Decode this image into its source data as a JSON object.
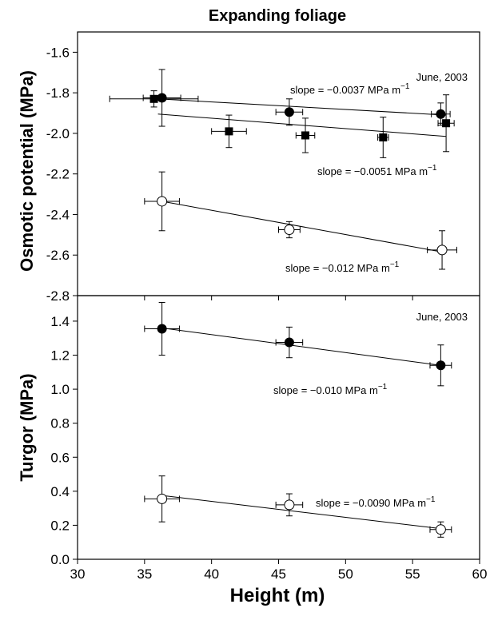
{
  "chart_data": [
    {
      "panel": "top",
      "type": "scatter",
      "title": "Expanding foliage",
      "ylabel": "Osmotic potential (MPa)",
      "xlabel": "",
      "xlim": [
        30,
        60
      ],
      "ylim": [
        -2.8,
        -1.5
      ],
      "yticks": [
        "-1.6",
        "-1.8",
        "-2.0",
        "-2.2",
        "-2.4",
        "-2.6",
        "-2.8"
      ],
      "annotation": "June, 2003",
      "series": [
        {
          "marker": "filled-circle",
          "points": [
            {
              "x": 36.3,
              "y": -1.825,
              "xerr": 1.4,
              "yerr": 0.14
            },
            {
              "x": 45.8,
              "y": -1.895,
              "xerr": 1.0,
              "yerr": 0.065
            },
            {
              "x": 57.1,
              "y": -1.905,
              "xerr": 0.7,
              "yerr": 0.055
            }
          ],
          "fit": [
            [
              36.0,
              -1.83
            ],
            [
              57.5,
              -1.91
            ]
          ],
          "slope_label": "slope = −0.0037 MPa m",
          "slope_sup": "−1"
        },
        {
          "marker": "filled-square",
          "points": [
            {
              "x": 35.7,
              "y": -1.83,
              "xerr": 3.3,
              "yerr": 0.04
            },
            {
              "x": 41.3,
              "y": -1.99,
              "xerr": 1.3,
              "yerr": 0.08
            },
            {
              "x": 47.0,
              "y": -2.01,
              "xerr": 0.7,
              "yerr": 0.085
            },
            {
              "x": 52.8,
              "y": -2.02,
              "xerr": 0.4,
              "yerr": 0.1
            },
            {
              "x": 57.5,
              "y": -1.95,
              "xerr": 0.6,
              "yerr": 0.14
            }
          ],
          "fit": [
            [
              36.0,
              -1.905
            ],
            [
              57.5,
              -2.015
            ]
          ],
          "slope_label": "slope = −0.0051 MPa m",
          "slope_sup": "−1"
        },
        {
          "marker": "open-circle",
          "points": [
            {
              "x": 36.3,
              "y": -2.335,
              "xerr": 1.3,
              "yerr": 0.145
            },
            {
              "x": 45.8,
              "y": -2.475,
              "xerr": 0.8,
              "yerr": 0.04
            },
            {
              "x": 57.2,
              "y": -2.575,
              "xerr": 1.1,
              "yerr": 0.095
            }
          ],
          "fit": [
            [
              36.3,
              -2.335
            ],
            [
              57.2,
              -2.585
            ]
          ],
          "slope_label": "slope = −0.012 MPa m",
          "slope_sup": "−1"
        }
      ]
    },
    {
      "panel": "bottom",
      "type": "scatter",
      "ylabel": "Turgor (MPa)",
      "xlabel": "Height (m)",
      "xlim": [
        30,
        60
      ],
      "ylim": [
        0,
        1.55
      ],
      "yticks": [
        "0.0",
        "0.2",
        "0.4",
        "0.6",
        "0.8",
        "1.0",
        "1.2",
        "1.4"
      ],
      "xticks": [
        "30",
        "35",
        "40",
        "45",
        "50",
        "55",
        "60"
      ],
      "annotation": "June, 2003",
      "series": [
        {
          "marker": "filled-circle",
          "points": [
            {
              "x": 36.3,
              "y": 1.355,
              "xerr": 1.3,
              "yerr": 0.155
            },
            {
              "x": 45.8,
              "y": 1.275,
              "xerr": 1.0,
              "yerr": 0.09
            },
            {
              "x": 57.1,
              "y": 1.14,
              "xerr": 0.8,
              "yerr": 0.12
            }
          ],
          "fit": [
            [
              36.3,
              1.36
            ],
            [
              57.1,
              1.14
            ]
          ],
          "slope_label": "slope = −0.010 MPa m",
          "slope_sup": "−1"
        },
        {
          "marker": "open-circle",
          "points": [
            {
              "x": 36.3,
              "y": 0.355,
              "xerr": 1.3,
              "yerr": 0.135
            },
            {
              "x": 45.8,
              "y": 0.32,
              "xerr": 1.0,
              "yerr": 0.065
            },
            {
              "x": 57.1,
              "y": 0.175,
              "xerr": 0.8,
              "yerr": 0.045
            }
          ],
          "fit": [
            [
              36.3,
              0.375
            ],
            [
              57.1,
              0.18
            ]
          ],
          "slope_label": "slope = −0.0090 MPa m",
          "slope_sup": "−1"
        }
      ]
    }
  ]
}
